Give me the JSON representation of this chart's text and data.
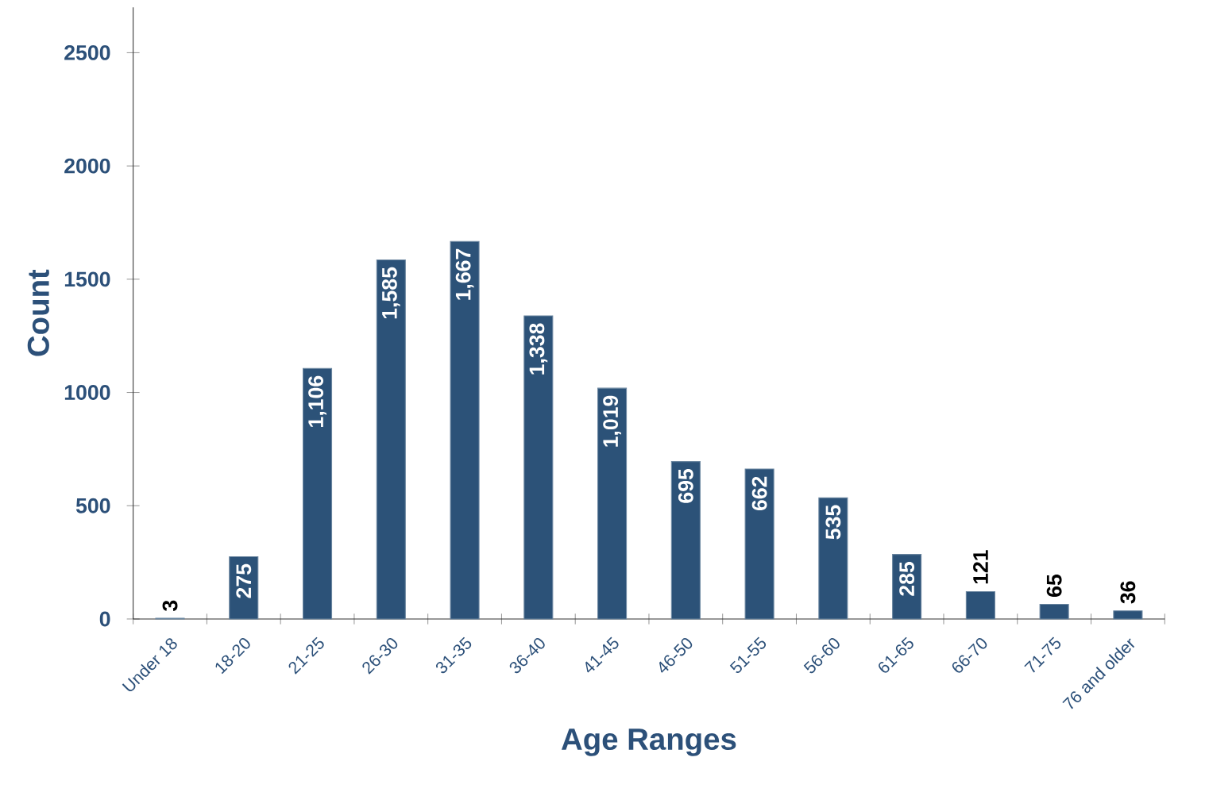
{
  "chart_data": {
    "type": "bar",
    "xlabel": "Age Ranges",
    "ylabel": "Count",
    "categories": [
      "Under 18",
      "18-20",
      "21-25",
      "26-30",
      "31-35",
      "36-40",
      "41-45",
      "46-50",
      "51-55",
      "56-60",
      "61-65",
      "66-70",
      "71-75",
      "76 and older"
    ],
    "values": [
      3,
      275,
      1106,
      1585,
      1667,
      1338,
      1019,
      695,
      662,
      535,
      285,
      121,
      65,
      36
    ],
    "value_labels": [
      "3",
      "275",
      "1,106",
      "1,585",
      "1,667",
      "1,338",
      "1,019",
      "695",
      "662",
      "535",
      "285",
      "121",
      "65",
      "36"
    ],
    "color": "#2c5278",
    "ylim": [
      0,
      2700
    ],
    "yticks": [
      0,
      500,
      1000,
      1500,
      2000,
      2500
    ],
    "grid": false
  }
}
